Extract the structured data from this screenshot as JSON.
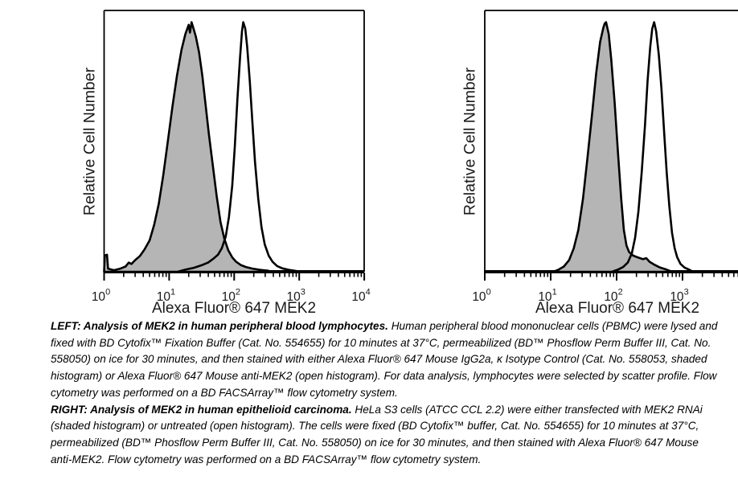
{
  "figure": {
    "background": "#ffffff",
    "caption": {
      "paragraphs": [
        {
          "lead": "LEFT: Analysis of MEK2 in human peripheral blood lymphocytes.",
          "body": "  Human peripheral blood mononuclear cells (PBMC) were lysed and fixed with BD Cytofix™ Fixation Buffer (Cat. No. 554655) for 10 minutes at 37°C, permeabilized (BD™ Phosflow Perm Buffer III, Cat. No. 558050) on ice for 30 minutes, and then stained with either Alexa Fluor® 647 Mouse IgG2a, κ Isotype Control (Cat. No. 558053, shaded histogram) or Alexa Fluor® 647 Mouse anti-MEK2 (open histogram).  For data analysis, lymphocytes were selected by scatter profile.  Flow cytometry was performed on a BD FACSArray™ flow cytometry system."
        },
        {
          "lead": "RIGHT: Analysis of MEK2 in human epithelioid carcinoma.",
          "body": "  HeLa S3 cells (ATCC CCL 2.2) were either transfected with MEK2 RNAi (shaded histogram) or untreated (open histogram).  The cells were fixed (BD Cytofix™ buffer, Cat. No. 554655) for 10 minutes at 37°C, permeabilized (BD™ Phosflow Perm Buffer III, Cat. No. 558050) on ice for 30 minutes, and then stained with Alexa Fluor® 647 Mouse anti-MEK2. Flow cytometry was performed on a BD FACSArray™ flow cytometry system."
        }
      ]
    }
  },
  "chart_data": [
    {
      "type": "area",
      "subtype": "flow-cytometry-overlay-histogram",
      "title": "",
      "xlabel": "Alexa Fluor® 647 MEK2",
      "ylabel": "Relative Cell Number",
      "x_scale": "log10",
      "x_range_exp": [
        0,
        4
      ],
      "x_tick_exponents_visible": [
        0,
        1,
        2,
        3,
        4
      ],
      "x_tick_labels": [
        "10^0",
        "10^1",
        "10^2",
        "10^3",
        "10^4"
      ],
      "y_ticks": [],
      "grid": false,
      "legend": "none",
      "colors": {
        "shaded_fill": "#b5b5b5",
        "outline": "#000000"
      },
      "series": [
        {
          "name": "Alexa Fluor® 647 Mouse IgG2a, κ Isotype Control (shaded histogram)",
          "style": "shaded",
          "peak_x_value": 22,
          "points": [
            [
              0.0,
              0.0
            ],
            [
              0.01,
              0.062
            ],
            [
              0.045,
              0.065
            ],
            [
              0.06,
              0.012
            ],
            [
              0.15,
              0.006
            ],
            [
              0.25,
              0.012
            ],
            [
              0.33,
              0.02
            ],
            [
              0.38,
              0.035
            ],
            [
              0.42,
              0.03
            ],
            [
              0.48,
              0.045
            ],
            [
              0.55,
              0.06
            ],
            [
              0.62,
              0.085
            ],
            [
              0.7,
              0.12
            ],
            [
              0.77,
              0.18
            ],
            [
              0.84,
              0.26
            ],
            [
              0.91,
              0.37
            ],
            [
              0.98,
              0.5
            ],
            [
              1.05,
              0.63
            ],
            [
              1.12,
              0.75
            ],
            [
              1.19,
              0.85
            ],
            [
              1.25,
              0.91
            ],
            [
              1.3,
              0.945
            ],
            [
              1.32,
              0.915
            ],
            [
              1.345,
              0.955
            ],
            [
              1.37,
              0.935
            ],
            [
              1.41,
              0.9
            ],
            [
              1.46,
              0.84
            ],
            [
              1.51,
              0.75
            ],
            [
              1.56,
              0.64
            ],
            [
              1.61,
              0.53
            ],
            [
              1.67,
              0.41
            ],
            [
              1.73,
              0.29
            ],
            [
              1.79,
              0.19
            ],
            [
              1.85,
              0.125
            ],
            [
              1.91,
              0.082
            ],
            [
              1.97,
              0.055
            ],
            [
              2.03,
              0.038
            ],
            [
              2.1,
              0.026
            ],
            [
              2.18,
              0.018
            ],
            [
              2.28,
              0.012
            ],
            [
              2.4,
              0.007
            ],
            [
              2.52,
              0.004
            ],
            [
              2.58,
              0.0
            ]
          ]
        },
        {
          "name": "Alexa Fluor® 647 Mouse anti-MEK2 (open histogram)",
          "style": "open",
          "peak_x_value": 135,
          "points": [
            [
              1.13,
              0.0
            ],
            [
              1.25,
              0.008
            ],
            [
              1.38,
              0.015
            ],
            [
              1.5,
              0.025
            ],
            [
              1.6,
              0.035
            ],
            [
              1.68,
              0.05
            ],
            [
              1.75,
              0.065
            ],
            [
              1.81,
              0.09
            ],
            [
              1.87,
              0.135
            ],
            [
              1.92,
              0.21
            ],
            [
              1.97,
              0.33
            ],
            [
              2.01,
              0.48
            ],
            [
              2.05,
              0.66
            ],
            [
              2.09,
              0.82
            ],
            [
              2.12,
              0.92
            ],
            [
              2.14,
              0.955
            ],
            [
              2.17,
              0.93
            ],
            [
              2.2,
              0.86
            ],
            [
              2.24,
              0.73
            ],
            [
              2.28,
              0.57
            ],
            [
              2.32,
              0.42
            ],
            [
              2.37,
              0.28
            ],
            [
              2.42,
              0.17
            ],
            [
              2.47,
              0.105
            ],
            [
              2.53,
              0.062
            ],
            [
              2.59,
              0.038
            ],
            [
              2.66,
              0.022
            ],
            [
              2.74,
              0.013
            ],
            [
              2.84,
              0.007
            ],
            [
              2.95,
              0.003
            ],
            [
              3.02,
              0.0
            ]
          ]
        }
      ]
    },
    {
      "type": "area",
      "subtype": "flow-cytometry-overlay-histogram",
      "title": "",
      "xlabel": "Alexa Fluor® 647 MEK2",
      "ylabel": "Relative Cell Number",
      "x_scale": "log10",
      "x_range_exp": [
        0,
        4
      ],
      "x_tick_exponents_visible": [
        0,
        1,
        2,
        3
      ],
      "x_tick_labels": [
        "10^0",
        "10^1",
        "10^2",
        "10^3"
      ],
      "y_ticks": [],
      "grid": false,
      "legend": "none",
      "colors": {
        "shaded_fill": "#b5b5b5",
        "outline": "#000000"
      },
      "series": [
        {
          "name": "MEK2 RNAi transfected (shaded histogram)",
          "style": "shaded",
          "peak_x_value": 71,
          "points": [
            [
              1.04,
              0.0
            ],
            [
              1.12,
              0.008
            ],
            [
              1.2,
              0.02
            ],
            [
              1.28,
              0.045
            ],
            [
              1.35,
              0.09
            ],
            [
              1.42,
              0.16
            ],
            [
              1.49,
              0.28
            ],
            [
              1.56,
              0.44
            ],
            [
              1.63,
              0.61
            ],
            [
              1.69,
              0.76
            ],
            [
              1.75,
              0.88
            ],
            [
              1.8,
              0.935
            ],
            [
              1.82,
              0.95
            ],
            [
              1.84,
              0.955
            ],
            [
              1.88,
              0.91
            ],
            [
              1.92,
              0.81
            ],
            [
              1.97,
              0.65
            ],
            [
              2.02,
              0.46
            ],
            [
              2.07,
              0.28
            ],
            [
              2.11,
              0.16
            ],
            [
              2.15,
              0.1
            ],
            [
              2.19,
              0.075
            ],
            [
              2.25,
              0.062
            ],
            [
              2.32,
              0.055
            ],
            [
              2.4,
              0.048
            ],
            [
              2.45,
              0.052
            ],
            [
              2.5,
              0.038
            ],
            [
              2.58,
              0.026
            ],
            [
              2.66,
              0.016
            ],
            [
              2.76,
              0.008
            ],
            [
              2.84,
              0.0
            ]
          ]
        },
        {
          "name": "untreated (open histogram)",
          "style": "open",
          "peak_x_value": 370,
          "points": [
            [
              1.93,
              0.0
            ],
            [
              2.02,
              0.008
            ],
            [
              2.1,
              0.018
            ],
            [
              2.17,
              0.035
            ],
            [
              2.23,
              0.07
            ],
            [
              2.28,
              0.13
            ],
            [
              2.33,
              0.23
            ],
            [
              2.38,
              0.38
            ],
            [
              2.43,
              0.56
            ],
            [
              2.47,
              0.73
            ],
            [
              2.51,
              0.86
            ],
            [
              2.54,
              0.93
            ],
            [
              2.57,
              0.955
            ],
            [
              2.6,
              0.92
            ],
            [
              2.64,
              0.83
            ],
            [
              2.68,
              0.7
            ],
            [
              2.72,
              0.54
            ],
            [
              2.76,
              0.38
            ],
            [
              2.8,
              0.25
            ],
            [
              2.84,
              0.15
            ],
            [
              2.88,
              0.09
            ],
            [
              2.92,
              0.055
            ],
            [
              2.97,
              0.03
            ],
            [
              3.03,
              0.016
            ],
            [
              3.1,
              0.008
            ],
            [
              3.16,
              0.0
            ]
          ]
        }
      ]
    }
  ]
}
